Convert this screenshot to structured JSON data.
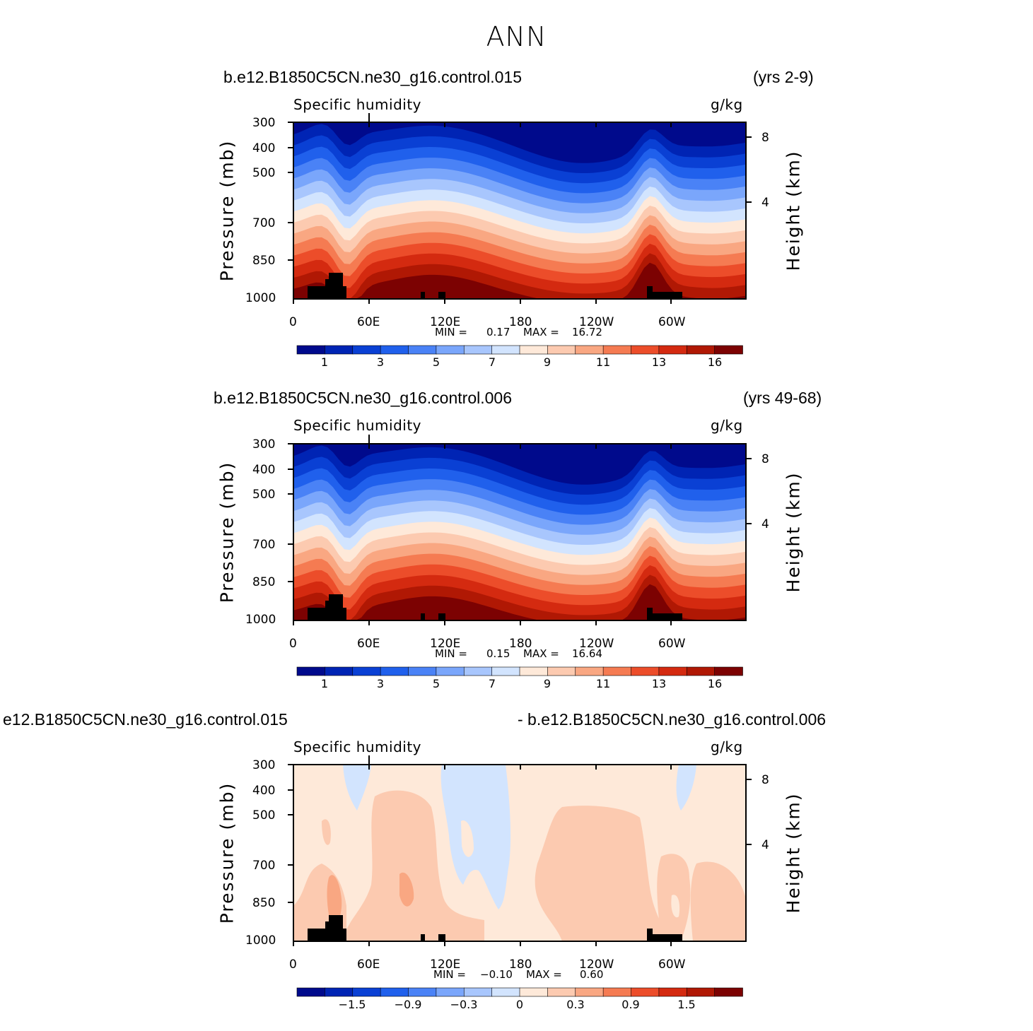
{
  "page_title": "ANN",
  "chart_data": [
    {
      "type": "heatmap",
      "case_label": "b.e12.B1850C5CN.ne30_g16.control.015",
      "years_label": "(yrs 2-9)",
      "title": "Specific humidity",
      "units": "g/kg",
      "ylabel": "Pressure (mb)",
      "y2label": "Height (km)",
      "yticks": [
        "300",
        "400",
        "500",
        "700",
        "850",
        "1000"
      ],
      "y2ticks": [
        "8",
        "4"
      ],
      "xticks": [
        "0",
        "60E",
        "120E",
        "180",
        "120W",
        "60W"
      ],
      "min_label": "MIN =",
      "min_value": "0.17",
      "max_label": "MAX =",
      "max_value": "16.72",
      "colorbar_ticks": [
        "1",
        "3",
        "5",
        "7",
        "9",
        "11",
        "13",
        "16"
      ],
      "colors": [
        "#000a8c",
        "#0024b4",
        "#0a40d4",
        "#2060ec",
        "#4a82f6",
        "#7aa6fb",
        "#a8c6fd",
        "#d2e4fe",
        "#fee9d9",
        "#fccab0",
        "#f9a782",
        "#f57b52",
        "#ec4d2a",
        "#d42a10",
        "#b01804",
        "#7c0202"
      ]
    },
    {
      "type": "heatmap",
      "case_label": "b.e12.B1850C5CN.ne30_g16.control.006",
      "years_label": "(yrs 49-68)",
      "title": "Specific humidity",
      "units": "g/kg",
      "ylabel": "Pressure (mb)",
      "y2label": "Height (km)",
      "yticks": [
        "300",
        "400",
        "500",
        "700",
        "850",
        "1000"
      ],
      "y2ticks": [
        "8",
        "4"
      ],
      "xticks": [
        "0",
        "60E",
        "120E",
        "180",
        "120W",
        "60W"
      ],
      "min_label": "MIN =",
      "min_value": "0.15",
      "max_label": "MAX =",
      "max_value": "16.64",
      "colorbar_ticks": [
        "1",
        "3",
        "5",
        "7",
        "9",
        "11",
        "13",
        "16"
      ],
      "colors": [
        "#000a8c",
        "#0024b4",
        "#0a40d4",
        "#2060ec",
        "#4a82f6",
        "#7aa6fb",
        "#a8c6fd",
        "#d2e4fe",
        "#fee9d9",
        "#fccab0",
        "#f9a782",
        "#f57b52",
        "#ec4d2a",
        "#d42a10",
        "#b01804",
        "#7c0202"
      ]
    },
    {
      "type": "heatmap",
      "case_label": "e12.B1850C5CN.ne30_g16.control.015",
      "years_label": "- b.e12.B1850C5CN.ne30_g16.control.006",
      "title": "Specific humidity",
      "units": "g/kg",
      "ylabel": "Pressure (mb)",
      "y2label": "Height (km)",
      "yticks": [
        "300",
        "400",
        "500",
        "700",
        "850",
        "1000"
      ],
      "y2ticks": [
        "8",
        "4"
      ],
      "xticks": [
        "0",
        "60E",
        "120E",
        "180",
        "120W",
        "60W"
      ],
      "min_label": "MIN =",
      "min_value": "−0.10",
      "max_label": "MAX =",
      "max_value": "0.60",
      "colorbar_ticks": [
        "−1.5",
        "−0.9",
        "−0.3",
        "0",
        "0.3",
        "0.9",
        "1.5"
      ],
      "colors": [
        "#000a8c",
        "#0024b4",
        "#0a40d4",
        "#2060ec",
        "#4a82f6",
        "#7aa6fb",
        "#a8c6fd",
        "#d2e4fe",
        "#fee9d9",
        "#fccab0",
        "#f9a782",
        "#f57b52",
        "#ec4d2a",
        "#d42a10",
        "#b01804",
        "#7c0202"
      ]
    }
  ]
}
